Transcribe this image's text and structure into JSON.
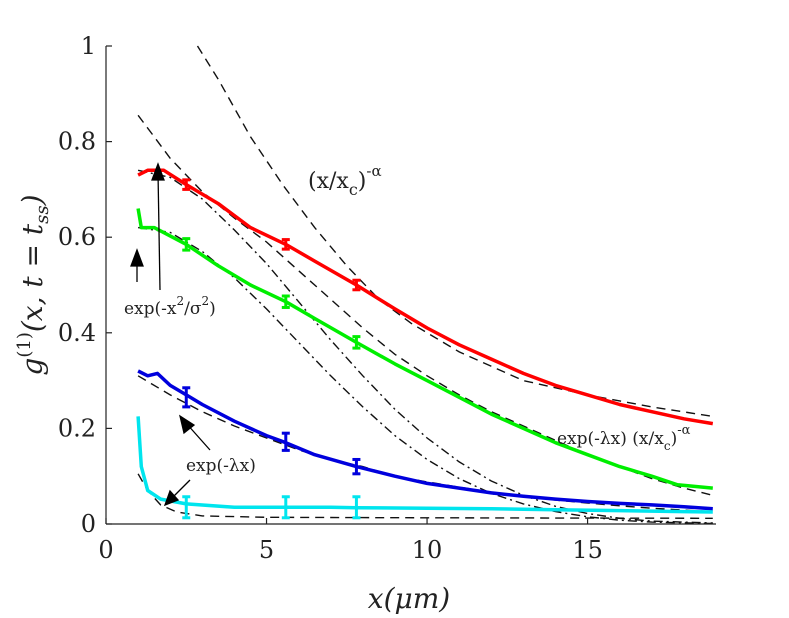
{
  "chart_data": {
    "type": "line",
    "xlabel": "x(μm)",
    "ylabel_main": "g",
    "ylabel_sup": "(1)",
    "ylabel_args": "(x, t = t",
    "ylabel_sub": "ss",
    "ylabel_close": ")",
    "xlim": [
      0,
      19
    ],
    "ylim": [
      0,
      1
    ],
    "xticks": [
      0,
      5,
      10,
      15
    ],
    "xtick_labels": [
      "0",
      "5",
      "10",
      "15"
    ],
    "yticks": [
      0,
      0.2,
      0.4,
      0.6,
      0.8,
      1
    ],
    "ytick_labels": [
      "0",
      "0.2",
      "0.4",
      "0.6",
      "0.8",
      "1"
    ],
    "grid": false,
    "annotations": {
      "power_law": {
        "base": "(x/x",
        "sub": "c",
        "sup": ")",
        "exp": "-α"
      },
      "gaussian": {
        "pre": "exp(-x",
        "sup": "2",
        "post": "/σ",
        "sup2": "2",
        "close": ")"
      },
      "exponential": {
        "text": "exp(-λx)"
      },
      "combined": {
        "pre": "exp(-λx) (x/x",
        "sub": "c",
        "mid": ")",
        "exp": "-α"
      }
    },
    "series": [
      {
        "color": "#ff0000",
        "points": [
          [
            1,
            0.73
          ],
          [
            1.3,
            0.74
          ],
          [
            1.8,
            0.74
          ],
          [
            2.5,
            0.71
          ],
          [
            3.5,
            0.67
          ],
          [
            4.5,
            0.62
          ],
          [
            5.6,
            0.585
          ],
          [
            6.5,
            0.55
          ],
          [
            7.8,
            0.5
          ],
          [
            9,
            0.45
          ],
          [
            10,
            0.41
          ],
          [
            11,
            0.375
          ],
          [
            12,
            0.345
          ],
          [
            13,
            0.315
          ],
          [
            14,
            0.29
          ],
          [
            15,
            0.27
          ],
          [
            16,
            0.25
          ],
          [
            17,
            0.235
          ],
          [
            18,
            0.22
          ],
          [
            18.9,
            0.21
          ]
        ],
        "error_bars": [
          [
            2.5,
            0.71,
            0.01
          ],
          [
            5.6,
            0.585,
            0.01
          ],
          [
            7.8,
            0.5,
            0.01
          ]
        ]
      },
      {
        "color": "#00ee00",
        "points": [
          [
            1,
            0.66
          ],
          [
            1.1,
            0.62
          ],
          [
            1.5,
            0.62
          ],
          [
            2.5,
            0.585
          ],
          [
            3.5,
            0.54
          ],
          [
            4.5,
            0.5
          ],
          [
            5.6,
            0.465
          ],
          [
            6.5,
            0.43
          ],
          [
            7.8,
            0.38
          ],
          [
            9,
            0.335
          ],
          [
            10,
            0.3
          ],
          [
            11,
            0.265
          ],
          [
            12,
            0.23
          ],
          [
            13,
            0.2
          ],
          [
            14,
            0.17
          ],
          [
            15,
            0.145
          ],
          [
            16,
            0.12
          ],
          [
            17,
            0.1
          ],
          [
            17.8,
            0.082
          ],
          [
            18.9,
            0.075
          ]
        ],
        "error_bars": [
          [
            2.5,
            0.585,
            0.012
          ],
          [
            5.6,
            0.465,
            0.012
          ],
          [
            7.8,
            0.38,
            0.012
          ]
        ]
      },
      {
        "color": "#0000dd",
        "points": [
          [
            1,
            0.32
          ],
          [
            1.3,
            0.31
          ],
          [
            1.6,
            0.315
          ],
          [
            2,
            0.29
          ],
          [
            2.5,
            0.27
          ],
          [
            3,
            0.25
          ],
          [
            4,
            0.215
          ],
          [
            5,
            0.185
          ],
          [
            5.6,
            0.17
          ],
          [
            6.5,
            0.145
          ],
          [
            7.8,
            0.12
          ],
          [
            9,
            0.1
          ],
          [
            10,
            0.085
          ],
          [
            11,
            0.075
          ],
          [
            12,
            0.065
          ],
          [
            13,
            0.058
          ],
          [
            14,
            0.052
          ],
          [
            15,
            0.047
          ],
          [
            16,
            0.043
          ],
          [
            17,
            0.04
          ],
          [
            18,
            0.036
          ],
          [
            18.9,
            0.032
          ]
        ],
        "error_bars": [
          [
            2.5,
            0.265,
            0.02
          ],
          [
            5.6,
            0.172,
            0.018
          ],
          [
            7.8,
            0.12,
            0.015
          ]
        ]
      },
      {
        "color": "#00e5ee",
        "points": [
          [
            1,
            0.225
          ],
          [
            1.1,
            0.12
          ],
          [
            1.3,
            0.07
          ],
          [
            1.7,
            0.052
          ],
          [
            2.5,
            0.042
          ],
          [
            4,
            0.035
          ],
          [
            5.6,
            0.035
          ],
          [
            7,
            0.035
          ],
          [
            7.8,
            0.034
          ],
          [
            10,
            0.033
          ],
          [
            12,
            0.032
          ],
          [
            14,
            0.03
          ],
          [
            16,
            0.028
          ],
          [
            18,
            0.026
          ],
          [
            18.9,
            0.025
          ]
        ],
        "error_bars": [
          [
            2.5,
            0.035,
            0.022
          ],
          [
            5.6,
            0.035,
            0.022
          ],
          [
            7.8,
            0.035,
            0.022
          ]
        ]
      }
    ],
    "fits": [
      {
        "style": "dashed",
        "points": [
          [
            2.85,
            1.0
          ],
          [
            3.5,
            0.93
          ],
          [
            4.5,
            0.81
          ],
          [
            5.5,
            0.71
          ],
          [
            6.5,
            0.62
          ],
          [
            7.5,
            0.54
          ],
          [
            8.5,
            0.47
          ],
          [
            9.5,
            0.42
          ],
          [
            11,
            0.36
          ],
          [
            13,
            0.3
          ],
          [
            15,
            0.27
          ],
          [
            17,
            0.245
          ],
          [
            18.9,
            0.225
          ]
        ]
      },
      {
        "style": "dashed",
        "points": [
          [
            1,
            0.855
          ],
          [
            1.5,
            0.81
          ],
          [
            2,
            0.765
          ],
          [
            3,
            0.695
          ],
          [
            4,
            0.64
          ],
          [
            5,
            0.59
          ],
          [
            6,
            0.53
          ],
          [
            7,
            0.47
          ],
          [
            8,
            0.41
          ],
          [
            9,
            0.355
          ],
          [
            10,
            0.31
          ],
          [
            11,
            0.27
          ],
          [
            12,
            0.235
          ],
          [
            13,
            0.205
          ],
          [
            14,
            0.175
          ],
          [
            15,
            0.145
          ],
          [
            16,
            0.12
          ],
          [
            17,
            0.095
          ],
          [
            18,
            0.075
          ],
          [
            18.9,
            0.06
          ]
        ]
      },
      {
        "style": "dashed",
        "points": [
          [
            1,
            0.31
          ],
          [
            2,
            0.27
          ],
          [
            3,
            0.235
          ],
          [
            4,
            0.205
          ],
          [
            5,
            0.18
          ],
          [
            6,
            0.155
          ],
          [
            7,
            0.135
          ],
          [
            8,
            0.12
          ],
          [
            9,
            0.1
          ],
          [
            10,
            0.088
          ],
          [
            11,
            0.077
          ],
          [
            12,
            0.067
          ],
          [
            13,
            0.058
          ],
          [
            14,
            0.05
          ],
          [
            15,
            0.044
          ],
          [
            16,
            0.038
          ],
          [
            17,
            0.033
          ],
          [
            18,
            0.029
          ],
          [
            18.9,
            0.026
          ]
        ]
      },
      {
        "style": "dashed",
        "points": [
          [
            1,
            0.105
          ],
          [
            1.3,
            0.07
          ],
          [
            1.7,
            0.04
          ],
          [
            2.2,
            0.025
          ],
          [
            3,
            0.017
          ],
          [
            5,
            0.014
          ],
          [
            10,
            0.013
          ],
          [
            18.9,
            0.012
          ]
        ]
      },
      {
        "style": "dashdot",
        "points": [
          [
            1,
            0.74
          ],
          [
            2,
            0.725
          ],
          [
            3,
            0.68
          ],
          [
            4,
            0.615
          ],
          [
            5,
            0.545
          ],
          [
            6,
            0.465
          ],
          [
            7,
            0.385
          ],
          [
            8,
            0.31
          ],
          [
            9,
            0.24
          ],
          [
            10,
            0.18
          ],
          [
            11,
            0.13
          ],
          [
            12,
            0.09
          ],
          [
            13,
            0.06
          ],
          [
            14,
            0.037
          ],
          [
            15,
            0.022
          ],
          [
            16,
            0.012
          ],
          [
            17,
            0.006
          ],
          [
            18.9,
            0.002
          ]
        ]
      },
      {
        "style": "dashdot",
        "points": [
          [
            1,
            0.62
          ],
          [
            2,
            0.61
          ],
          [
            3,
            0.57
          ],
          [
            4,
            0.515
          ],
          [
            5,
            0.45
          ],
          [
            6,
            0.38
          ],
          [
            7,
            0.31
          ],
          [
            8,
            0.245
          ],
          [
            9,
            0.185
          ],
          [
            10,
            0.135
          ],
          [
            11,
            0.095
          ],
          [
            12,
            0.064
          ],
          [
            13,
            0.042
          ],
          [
            14,
            0.026
          ],
          [
            15,
            0.015
          ],
          [
            16,
            0.008
          ],
          [
            17,
            0.004
          ],
          [
            18.9,
            0.001
          ]
        ]
      }
    ]
  }
}
